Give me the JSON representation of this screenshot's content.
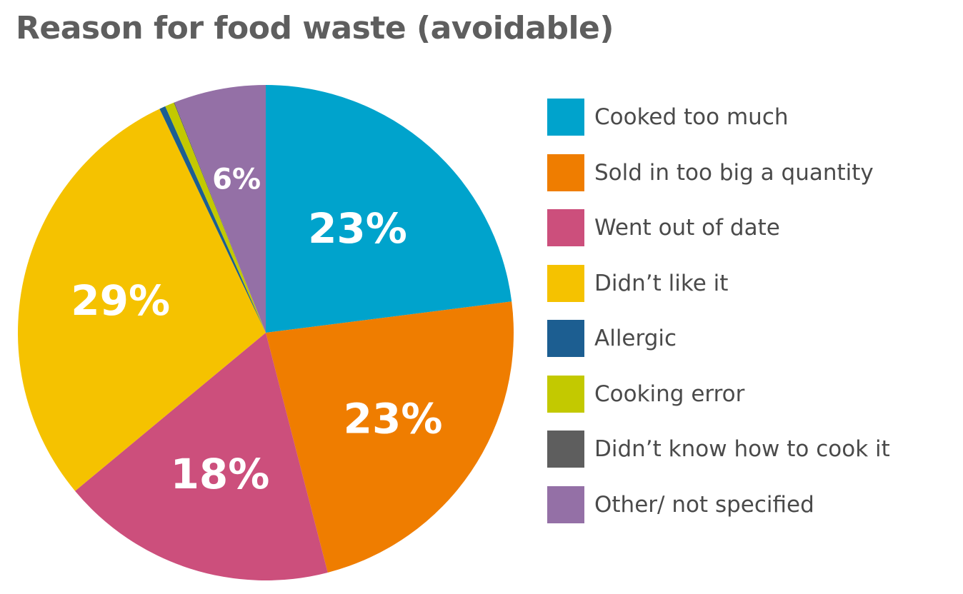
{
  "chart_data": {
    "type": "pie",
    "title": "Reason for food waste (avoidable)",
    "legend_position": "right",
    "slices": [
      {
        "name": "Cooked too much",
        "value": 23,
        "label": "23%",
        "color": "#00a3cc"
      },
      {
        "name": "Sold in too big a quantity",
        "value": 23,
        "label": "23%",
        "color": "#ef7d00"
      },
      {
        "name": "Went out of date",
        "value": 18,
        "label": "18%",
        "color": "#cc4f7c"
      },
      {
        "name": "Didn’t like it",
        "value": 29,
        "label": "29%",
        "color": "#f5c200"
      },
      {
        "name": "Allergic",
        "value": 0.4,
        "label": "",
        "color": "#1c5e91"
      },
      {
        "name": "Cooking error",
        "value": 0.6,
        "label": "",
        "color": "#c3c900"
      },
      {
        "name": "Didn’t know how to cook it",
        "value": 0.05,
        "label": "",
        "color": "#5e5e5e"
      },
      {
        "name": "Other/ not specified",
        "value": 6,
        "label": "6%",
        "color": "#9470a6"
      }
    ]
  }
}
